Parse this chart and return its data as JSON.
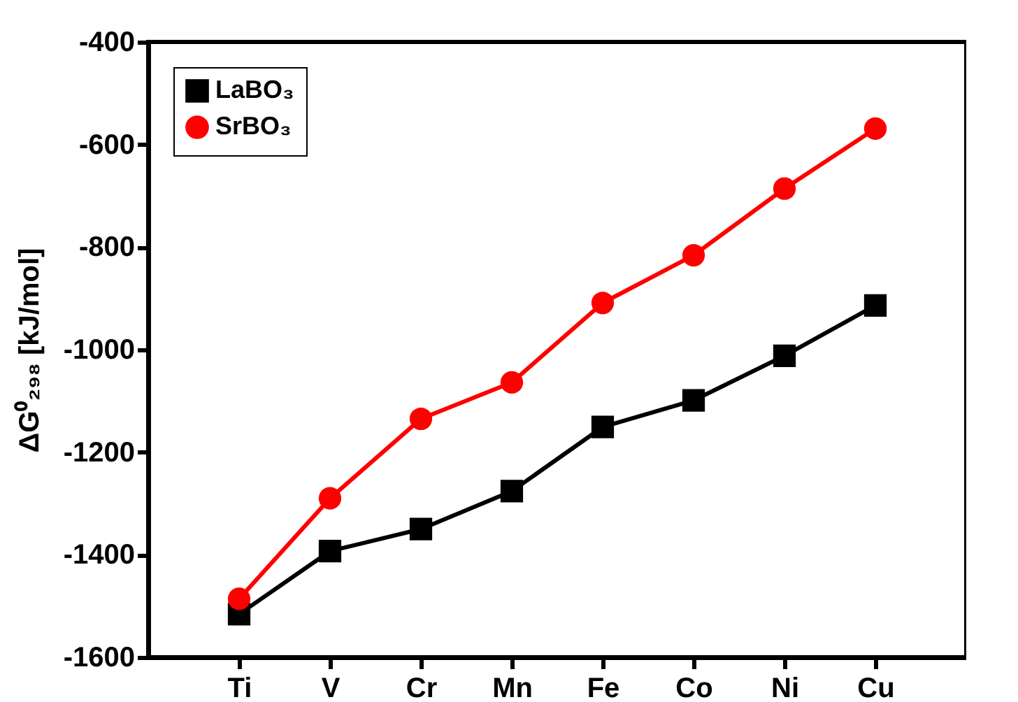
{
  "chart_data": {
    "type": "line",
    "ylabel": "ΔG⁰₂₉₈ [kJ/mol]",
    "categories": [
      "Ti",
      "V",
      "Cr",
      "Mn",
      "Fe",
      "Co",
      "Ni",
      "Cu"
    ],
    "series": [
      {
        "name": "LaBO₃",
        "color": "#000000",
        "marker": "square",
        "values": [
          -1516,
          -1393,
          -1350,
          -1276,
          -1151,
          -1099,
          -1012,
          -914
        ]
      },
      {
        "name": "SrBO₃",
        "color": "#ff0000",
        "marker": "circle",
        "values": [
          -1486,
          -1290,
          -1135,
          -1064,
          -909,
          -816,
          -686,
          -569
        ]
      }
    ],
    "ylim": [
      -1600,
      -400
    ],
    "yticks": [
      -1600,
      -1400,
      -1200,
      -1000,
      -800,
      -600,
      -400
    ],
    "grid": false,
    "legend": "top left",
    "line_style": "solid"
  }
}
